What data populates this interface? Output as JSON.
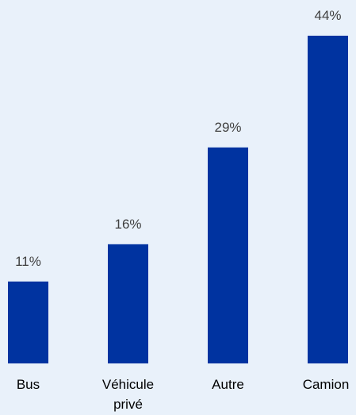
{
  "chart_data": {
    "type": "bar",
    "categories": [
      "Bus",
      "Véhicule privé",
      "Autre",
      "Camion"
    ],
    "category_lines": [
      [
        "Bus"
      ],
      [
        "Véhicule",
        "privé"
      ],
      [
        "Autre"
      ],
      [
        "Camion"
      ]
    ],
    "values": [
      11,
      16,
      29,
      44
    ],
    "value_labels": [
      "11%",
      "16%",
      "29%",
      "44%"
    ],
    "unit": "%",
    "title": "",
    "xlabel": "",
    "ylabel": "",
    "ylim": [
      0,
      44
    ],
    "grid": false,
    "legend": "none",
    "colors": {
      "bar": "#0033A0",
      "background": "#E9F1FA",
      "data_label": "#404040",
      "category_label": "#000000"
    }
  }
}
